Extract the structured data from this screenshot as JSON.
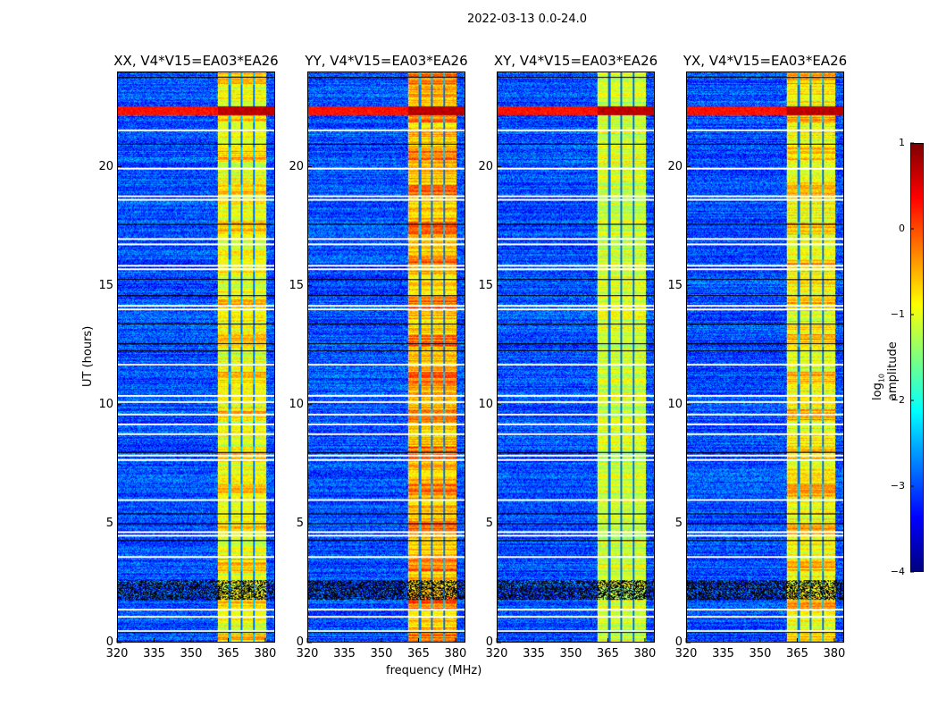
{
  "chart_data": {
    "type": "heatmap",
    "title": "2022-03-13 0.0-24.0",
    "xlabel": "frequency (MHz)",
    "ylabel": "UT (hours)",
    "xlim": [
      320,
      384
    ],
    "ylim": [
      0,
      24
    ],
    "xticks": [
      "320",
      "335",
      "350",
      "365",
      "380"
    ],
    "xtick_values": [
      320,
      335,
      350,
      365,
      380
    ],
    "yticks": [
      "0",
      "5",
      "10",
      "15",
      "20"
    ],
    "ytick_values": [
      0,
      5,
      10,
      15,
      20
    ],
    "colorbar": {
      "label_main": "log",
      "label_sub": "10",
      "label_tail": " amplitude",
      "ticks": [
        "1",
        "0",
        "−1",
        "−2",
        "−3",
        "−4"
      ],
      "tick_values": [
        1,
        0,
        -1,
        -2,
        -3,
        -4
      ],
      "range": [
        -4,
        1
      ],
      "colormap": "jet"
    },
    "panels": [
      {
        "title": "XX, V4*V15=EA03*EA26",
        "band_level": -1.0
      },
      {
        "title": "YY, V4*V15=EA03*EA26",
        "band_level": -0.6
      },
      {
        "title": "XY, V4*V15=EA03*EA26",
        "band_level": -1.1
      },
      {
        "title": "YX, V4*V15=EA03*EA26",
        "band_level": -0.9
      }
    ],
    "rfi_band_mhz": [
      360.5,
      380.5
    ],
    "subband_gaps_mhz": [
      365.5,
      370.5,
      375.5
    ],
    "background_level": -3.0,
    "strong_rfi_hours": [
      22.2,
      22.6
    ],
    "flagged_hours": [
      21.6,
      20.0,
      18.8,
      18.65,
      17.0,
      16.8,
      15.9,
      15.75,
      14.2,
      14.05,
      11.7,
      10.4,
      10.15,
      9.6,
      9.2,
      8.8,
      7.9,
      7.7,
      6.0,
      4.65,
      4.5,
      3.6,
      1.4,
      1.1,
      0.5
    ],
    "dropout_hours": [
      23.8,
      21.0,
      17.6,
      15.3,
      14.6,
      13.4,
      12.6,
      12.3,
      8.0,
      5.4,
      5.0,
      4.3,
      0.4
    ],
    "noisy_hours": [
      1.8,
      2.6
    ]
  }
}
